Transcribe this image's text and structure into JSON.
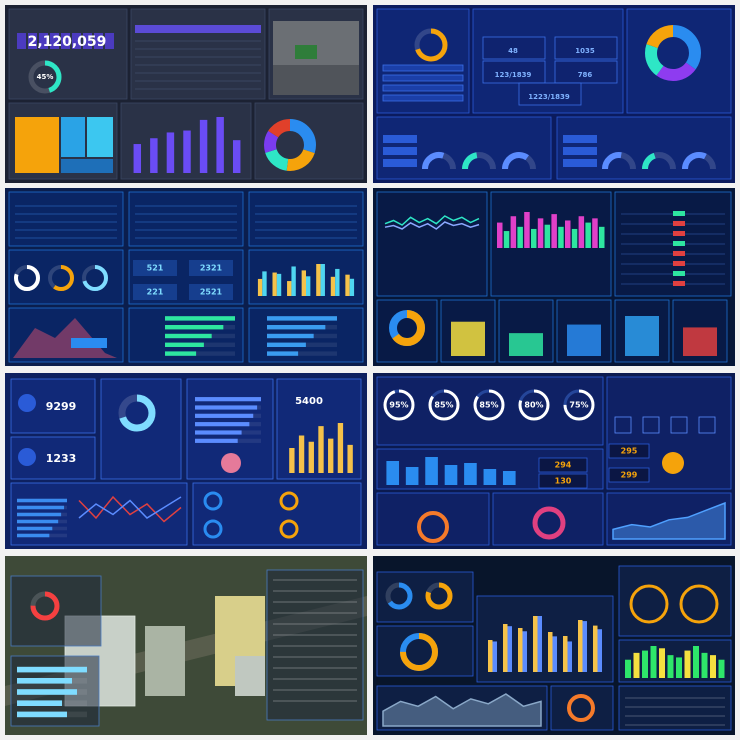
{
  "tiles": [
    {
      "counter": "2,120,059",
      "ring": {
        "value": 45,
        "label": "45%"
      },
      "bars": [
        30,
        36,
        42,
        44,
        55,
        58,
        34
      ],
      "pie": [
        30,
        22,
        18,
        14,
        16
      ]
    },
    {
      "stats": [
        "48",
        "1035",
        "123/1839",
        "786",
        "1223/1839"
      ],
      "ring": 70,
      "pie": [
        35,
        25,
        20,
        20
      ],
      "gauges": [
        60,
        45,
        70,
        55,
        40,
        65
      ]
    },
    {
      "stats": [
        "521",
        "2321",
        "221",
        "2521"
      ],
      "rings": [
        80,
        60,
        70
      ],
      "bars_a": [
        40,
        55,
        35,
        60,
        75,
        45,
        50
      ],
      "bars_b": [
        50,
        45,
        60,
        40,
        65,
        55,
        35
      ],
      "hbars": [
        90,
        75,
        60,
        50,
        40
      ]
    },
    {
      "line_a": [
        50,
        55,
        48,
        60,
        52,
        58,
        50,
        62,
        55,
        60,
        52,
        58
      ],
      "line_b": [
        40,
        42,
        38,
        45,
        40,
        44,
        38,
        46,
        42,
        44,
        40,
        43
      ],
      "spikes": [
        60,
        40,
        75,
        50,
        85,
        45,
        70,
        55,
        80,
        50,
        65,
        45,
        75,
        60,
        70,
        50
      ],
      "ring": 65,
      "levels": [
        60,
        40,
        55,
        70,
        50
      ]
    },
    {
      "stats": [
        "9299",
        "1233",
        "5400"
      ],
      "ring": 70,
      "hbars": [
        85,
        80,
        75,
        70,
        60,
        55
      ],
      "bars": [
        40,
        60,
        50,
        75,
        55,
        80,
        45
      ],
      "line_a": [
        55,
        30,
        60,
        35,
        50,
        25,
        45
      ],
      "line_b": [
        30,
        50,
        35,
        55,
        30,
        45,
        60
      ]
    },
    {
      "rings": [
        {
          "value": 95,
          "label": "95%"
        },
        {
          "value": 85,
          "label": "85%"
        },
        {
          "value": 85,
          "label": "85%"
        },
        {
          "value": 80,
          "label": "80%"
        },
        {
          "value": 75,
          "label": "75%"
        }
      ],
      "stats": [
        "294",
        "130",
        "295",
        "299"
      ],
      "bars": [
        60,
        45,
        70,
        50,
        55,
        40,
        35
      ],
      "area": [
        20,
        30,
        25,
        40,
        45,
        60,
        75
      ]
    },
    {
      "ring": 75,
      "hbars": [
        70,
        55,
        60,
        45,
        50
      ]
    },
    {
      "rings": [
        65,
        80
      ],
      "ring_big": 75,
      "bars_a": [
        40,
        60,
        55,
        70,
        50,
        45,
        65,
        58
      ],
      "bars_b": [
        30,
        45,
        40,
        55,
        35,
        30,
        50,
        42
      ],
      "green": [
        40,
        55,
        60,
        70,
        65,
        50,
        45,
        60,
        70,
        55,
        50,
        40
      ],
      "area": [
        30,
        50,
        40,
        60,
        35,
        55,
        45,
        65,
        40,
        50
      ]
    }
  ]
}
